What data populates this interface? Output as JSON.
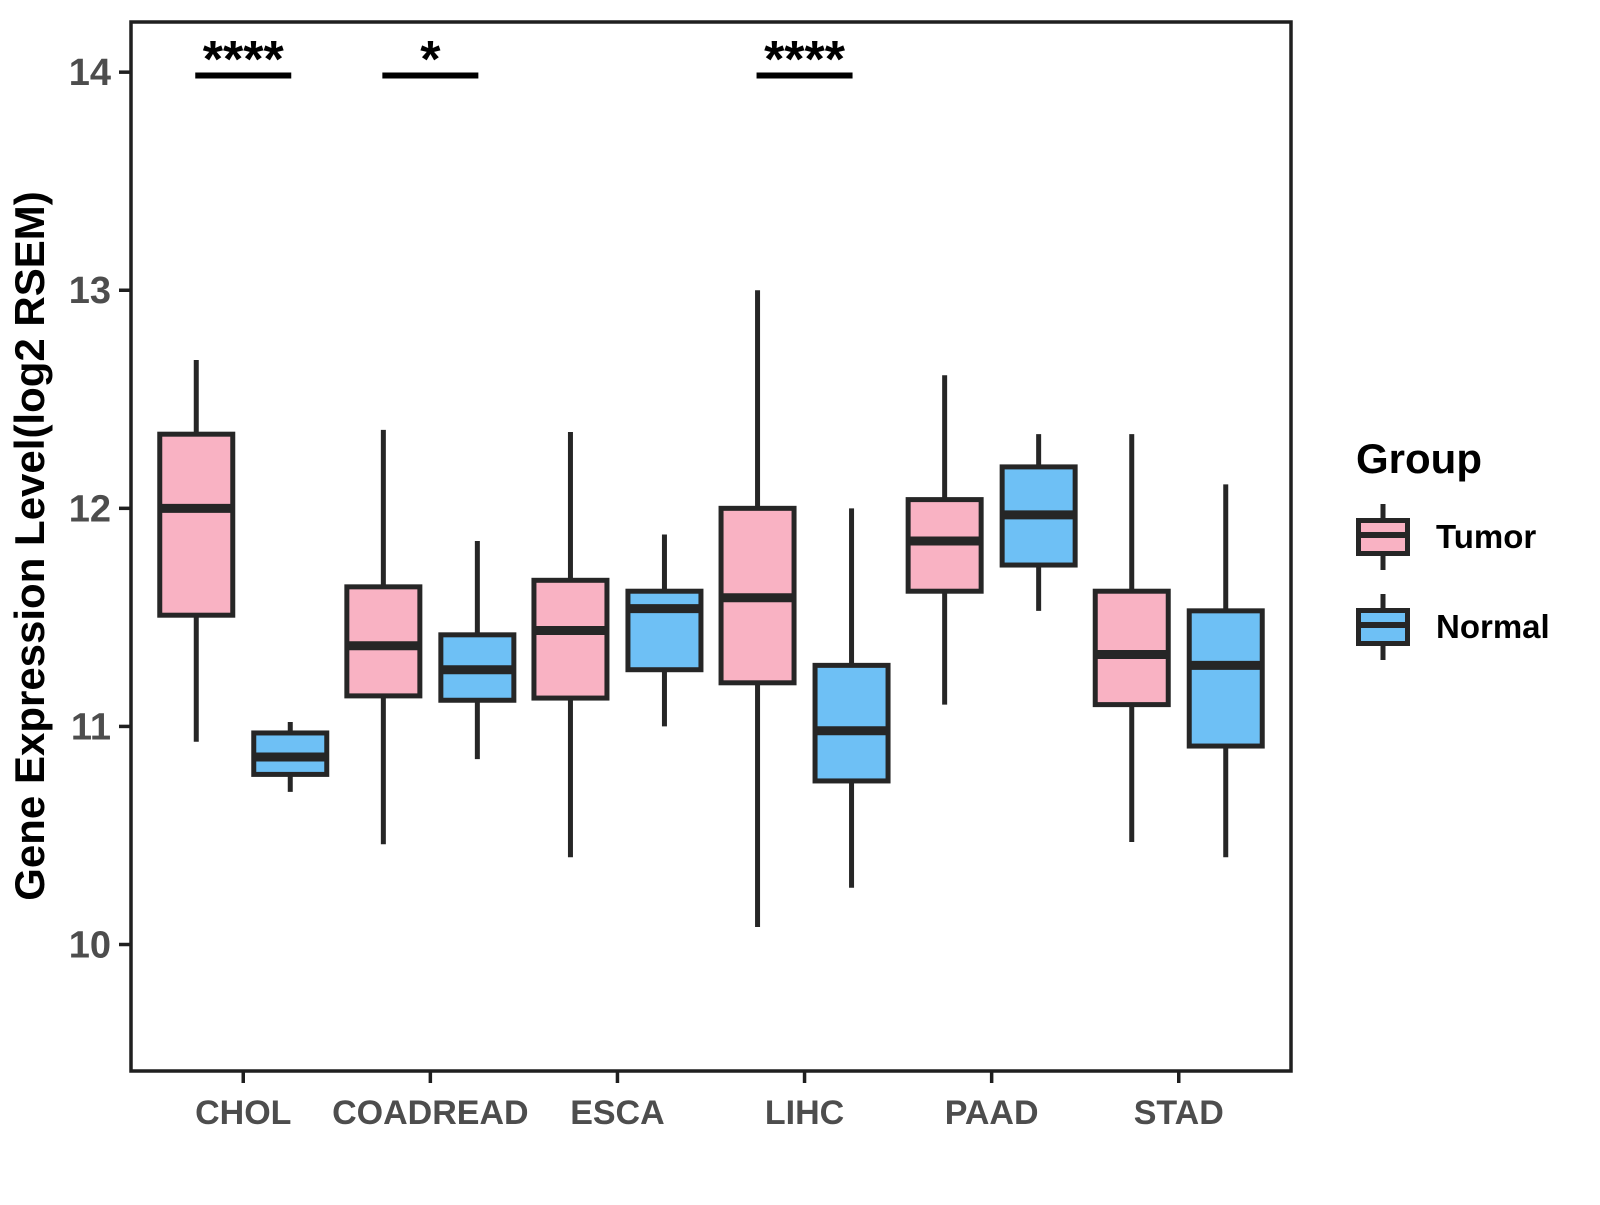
{
  "chart_data": {
    "type": "boxplot",
    "title": "",
    "xlabel": "",
    "ylabel": "Gene Expression Level(log2 RSEM)",
    "ylim": [
      9.42,
      14.23
    ],
    "yticks": [
      "10",
      "11",
      "12",
      "13",
      "14"
    ],
    "grid": false,
    "categories": [
      "CHOL",
      "COADREAD",
      "ESCA",
      "LIHC",
      "PAAD",
      "STAD"
    ],
    "colors": {
      "tumor_fill": "#F9B2C3",
      "normal_fill": "#6EC0F5",
      "box_stroke": "#262626",
      "panel_border": "#1F1F1F",
      "tick_label": "#4D4D4D",
      "annotation": "#000000"
    },
    "legend": {
      "title": "Group",
      "position": "right"
    },
    "groups": [
      {
        "name": "Tumor",
        "color": "#F9B2C3",
        "boxes": [
          {
            "category": "CHOL",
            "low": 10.93,
            "q1": 11.51,
            "median": 12.0,
            "q3": 12.34,
            "high": 12.68
          },
          {
            "category": "COADREAD",
            "low": 10.46,
            "q1": 11.14,
            "median": 11.37,
            "q3": 11.64,
            "high": 12.36
          },
          {
            "category": "ESCA",
            "low": 10.4,
            "q1": 11.13,
            "median": 11.44,
            "q3": 11.67,
            "high": 12.35
          },
          {
            "category": "LIHC",
            "low": 10.08,
            "q1": 11.2,
            "median": 11.59,
            "q3": 12.0,
            "high": 13.0
          },
          {
            "category": "PAAD",
            "low": 11.1,
            "q1": 11.62,
            "median": 11.85,
            "q3": 12.04,
            "high": 12.61
          },
          {
            "category": "STAD",
            "low": 10.47,
            "q1": 11.1,
            "median": 11.33,
            "q3": 11.62,
            "high": 12.34
          }
        ]
      },
      {
        "name": "Normal",
        "color": "#6EC0F5",
        "boxes": [
          {
            "category": "CHOL",
            "low": 10.7,
            "q1": 10.78,
            "median": 10.86,
            "q3": 10.97,
            "high": 11.02
          },
          {
            "category": "COADREAD",
            "low": 10.85,
            "q1": 11.12,
            "median": 11.26,
            "q3": 11.42,
            "high": 11.85
          },
          {
            "category": "ESCA",
            "low": 11.0,
            "q1": 11.26,
            "median": 11.54,
            "q3": 11.62,
            "high": 11.88
          },
          {
            "category": "LIHC",
            "low": 10.26,
            "q1": 10.75,
            "median": 10.98,
            "q3": 11.28,
            "high": 12.0
          },
          {
            "category": "PAAD",
            "low": 11.53,
            "q1": 11.74,
            "median": 11.97,
            "q3": 12.19,
            "high": 12.34
          },
          {
            "category": "STAD",
            "low": 10.4,
            "q1": 10.91,
            "median": 11.28,
            "q3": 11.53,
            "high": 12.11
          }
        ]
      }
    ],
    "significance": [
      {
        "category": "CHOL",
        "label": "****"
      },
      {
        "category": "COADREAD",
        "label": "*"
      },
      {
        "category": "LIHC",
        "label": "****"
      }
    ]
  }
}
